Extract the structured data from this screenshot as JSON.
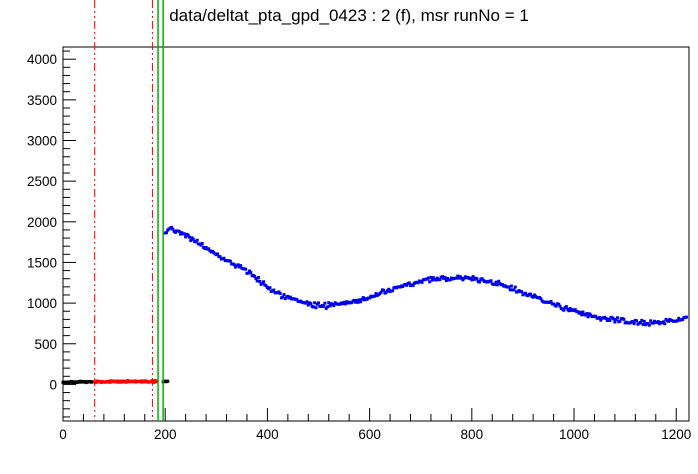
{
  "title": "data/deltat_pta_gpd_0423 : 2 (f), msr runNo = 1",
  "chart_data": {
    "type": "scatter",
    "title": "data/deltat_pta_gpd_0423 : 2 (f), msr runNo = 1",
    "xlabel": "",
    "ylabel": "",
    "xlim": [
      0,
      1225
    ],
    "ylim": [
      -450,
      4150
    ],
    "grid": false,
    "legend": "none",
    "x_ticks": {
      "major_step": 200,
      "minor_step": 40,
      "max_label": 1200,
      "labels": [
        0,
        200,
        400,
        600,
        800,
        1000,
        1200
      ]
    },
    "y_ticks": {
      "major_step": 500,
      "minor_step": 100,
      "max_label": 4000,
      "labels": [
        0,
        500,
        1000,
        1500,
        2000,
        2500,
        3000,
        3500,
        4000
      ]
    },
    "frame_color": "#000000",
    "vlines": [
      {
        "x": 62,
        "color": "#ff0000",
        "style": "dashdot",
        "width": 1
      },
      {
        "x": 175,
        "color": "#ff0000",
        "style": "dashdot",
        "width": 1
      },
      {
        "x": 186,
        "color": "#00b200",
        "style": "solid",
        "width": 1.5
      },
      {
        "x": 196,
        "color": "#00b200",
        "style": "solid",
        "width": 1.5
      }
    ],
    "series": [
      {
        "name": "pre-window-counts-black",
        "color": "#000000",
        "marker": 3,
        "step": 1.5,
        "noise": 12,
        "seed": 7,
        "anchors": [
          [
            0,
            28
          ],
          [
            58,
            30
          ]
        ]
      },
      {
        "name": "background-window-counts-red",
        "color": "#ff0000",
        "marker": 3,
        "step": 1.5,
        "noise": 15,
        "seed": 13,
        "anchors": [
          [
            62,
            35
          ],
          [
            184,
            35
          ]
        ]
      },
      {
        "name": "between-window-counts-black",
        "color": "#000000",
        "marker": 3,
        "step": 1.5,
        "noise": 15,
        "seed": 21,
        "anchors": [
          [
            196,
            35
          ],
          [
            206,
            40
          ]
        ]
      },
      {
        "name": "decay-histogram-blue",
        "color": "#0000f0",
        "marker": 3,
        "step": 2.5,
        "noise": 45,
        "seed": 42,
        "anchors": [
          [
            200,
            1850
          ],
          [
            210,
            1930
          ],
          [
            220,
            1900
          ],
          [
            235,
            1860
          ],
          [
            250,
            1800
          ],
          [
            270,
            1710
          ],
          [
            290,
            1640
          ],
          [
            310,
            1560
          ],
          [
            330,
            1500
          ],
          [
            350,
            1430
          ],
          [
            370,
            1340
          ],
          [
            390,
            1250
          ],
          [
            410,
            1160
          ],
          [
            430,
            1090
          ],
          [
            450,
            1040
          ],
          [
            470,
            1000
          ],
          [
            490,
            980
          ],
          [
            510,
            970
          ],
          [
            530,
            985
          ],
          [
            550,
            1000
          ],
          [
            570,
            1020
          ],
          [
            590,
            1050
          ],
          [
            610,
            1090
          ],
          [
            630,
            1130
          ],
          [
            650,
            1180
          ],
          [
            670,
            1220
          ],
          [
            690,
            1250
          ],
          [
            710,
            1280
          ],
          [
            730,
            1295
          ],
          [
            750,
            1305
          ],
          [
            770,
            1310
          ],
          [
            790,
            1305
          ],
          [
            810,
            1295
          ],
          [
            830,
            1270
          ],
          [
            850,
            1240
          ],
          [
            870,
            1200
          ],
          [
            890,
            1150
          ],
          [
            910,
            1100
          ],
          [
            930,
            1060
          ],
          [
            950,
            1010
          ],
          [
            970,
            960
          ],
          [
            990,
            920
          ],
          [
            1010,
            880
          ],
          [
            1030,
            850
          ],
          [
            1050,
            820
          ],
          [
            1070,
            800
          ],
          [
            1090,
            780
          ],
          [
            1110,
            765
          ],
          [
            1130,
            755
          ],
          [
            1150,
            760
          ],
          [
            1170,
            770
          ],
          [
            1190,
            785
          ],
          [
            1210,
            805
          ],
          [
            1222,
            820
          ]
        ]
      }
    ]
  }
}
